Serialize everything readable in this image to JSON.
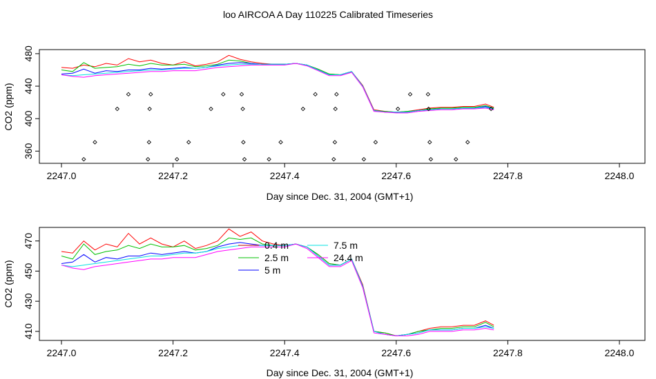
{
  "title": "loo AIRCOA A  Day 110225  Calibrated Timeseries",
  "chart_data": [
    {
      "type": "line",
      "xlabel": "Day since Dec. 31, 2004 (GMT+1)",
      "ylabel": "CO2 (ppm)",
      "xlim": [
        2247.0,
        2248.0
      ],
      "ylim": [
        345,
        485
      ],
      "xticks": [
        "2247.0",
        "2247.2",
        "2247.4",
        "2247.6",
        "2247.8",
        "2248.0"
      ],
      "yticks": [
        "360",
        "400",
        "440",
        "480"
      ],
      "grid": false,
      "series": [
        {
          "color": "#ff0000",
          "x": [
            2247.0,
            2247.02,
            2247.04,
            2247.06,
            2247.08,
            2247.1,
            2247.12,
            2247.14,
            2247.16,
            2247.18,
            2247.2,
            2247.22,
            2247.24,
            2247.26,
            2247.28,
            2247.3,
            2247.32,
            2247.34,
            2247.36,
            2247.38,
            2247.4,
            2247.42,
            2247.44,
            2247.46,
            2247.48,
            2247.5,
            2247.52,
            2247.54,
            2247.56,
            2247.58,
            2247.6,
            2247.62,
            2247.64,
            2247.66,
            2247.68,
            2247.7,
            2247.72,
            2247.74,
            2247.76,
            2247.775
          ],
          "y": [
            463,
            462,
            466,
            464,
            468,
            466,
            474,
            470,
            472,
            468,
            466,
            470,
            465,
            467,
            470,
            478,
            473,
            470,
            468,
            467,
            467,
            468,
            466,
            461,
            455,
            454,
            458,
            441,
            411,
            409,
            408,
            409,
            411,
            413,
            414,
            414,
            415,
            415,
            418,
            414
          ]
        },
        {
          "color": "#00c000",
          "x": [
            2247.0,
            2247.02,
            2247.04,
            2247.06,
            2247.08,
            2247.1,
            2247.12,
            2247.14,
            2247.16,
            2247.18,
            2247.2,
            2247.22,
            2247.24,
            2247.26,
            2247.28,
            2247.3,
            2247.32,
            2247.34,
            2247.36,
            2247.38,
            2247.4,
            2247.42,
            2247.44,
            2247.46,
            2247.48,
            2247.5,
            2247.52,
            2247.54,
            2247.56,
            2247.58,
            2247.6,
            2247.62,
            2247.64,
            2247.66,
            2247.68,
            2247.7,
            2247.72,
            2247.74,
            2247.76,
            2247.775
          ],
          "y": [
            460,
            458,
            469,
            462,
            463,
            464,
            467,
            465,
            468,
            466,
            466,
            467,
            464,
            465,
            467,
            472,
            471,
            468,
            467,
            467,
            467,
            468,
            466,
            461,
            455,
            454,
            458,
            440,
            410,
            409,
            408,
            409,
            410,
            412,
            413,
            413,
            414,
            414,
            416,
            413
          ]
        },
        {
          "color": "#0000ff",
          "x": [
            2247.0,
            2247.02,
            2247.04,
            2247.06,
            2247.08,
            2247.1,
            2247.12,
            2247.14,
            2247.16,
            2247.18,
            2247.2,
            2247.22,
            2247.24,
            2247.26,
            2247.28,
            2247.3,
            2247.32,
            2247.34,
            2247.36,
            2247.38,
            2247.4,
            2247.42,
            2247.44,
            2247.46,
            2247.48,
            2247.5,
            2247.52,
            2247.54,
            2247.56,
            2247.58,
            2247.6,
            2247.62,
            2247.64,
            2247.66,
            2247.68,
            2247.7,
            2247.72,
            2247.74,
            2247.76,
            2247.775
          ],
          "y": [
            455,
            456,
            461,
            456,
            459,
            458,
            460,
            460,
            462,
            461,
            462,
            463,
            462,
            463,
            466,
            468,
            469,
            468,
            467,
            467,
            467,
            468,
            466,
            460,
            454,
            454,
            458,
            440,
            410,
            408,
            408,
            408,
            410,
            411,
            412,
            412,
            413,
            413,
            415,
            412
          ]
        },
        {
          "color": "#00e0e0",
          "x": [
            2247.0,
            2247.02,
            2247.04,
            2247.06,
            2247.08,
            2247.1,
            2247.12,
            2247.14,
            2247.16,
            2247.18,
            2247.2,
            2247.22,
            2247.24,
            2247.26,
            2247.28,
            2247.3,
            2247.32,
            2247.34,
            2247.36,
            2247.38,
            2247.4,
            2247.42,
            2247.44,
            2247.46,
            2247.48,
            2247.5,
            2247.52,
            2247.54,
            2247.56,
            2247.58,
            2247.6,
            2247.62,
            2247.64,
            2247.66,
            2247.68,
            2247.7,
            2247.72,
            2247.74,
            2247.76,
            2247.775
          ],
          "y": [
            454,
            453,
            454,
            455,
            456,
            457,
            458,
            459,
            460,
            460,
            461,
            462,
            462,
            463,
            465,
            466,
            467,
            467,
            467,
            467,
            467,
            468,
            466,
            460,
            454,
            454,
            458,
            440,
            410,
            408,
            408,
            408,
            410,
            411,
            412,
            412,
            413,
            413,
            414,
            412
          ]
        },
        {
          "color": "#ff00ff",
          "x": [
            2247.0,
            2247.02,
            2247.04,
            2247.06,
            2247.08,
            2247.1,
            2247.12,
            2247.14,
            2247.16,
            2247.18,
            2247.2,
            2247.22,
            2247.24,
            2247.26,
            2247.28,
            2247.3,
            2247.32,
            2247.34,
            2247.36,
            2247.38,
            2247.4,
            2247.42,
            2247.44,
            2247.46,
            2247.48,
            2247.5,
            2247.52,
            2247.54,
            2247.56,
            2247.58,
            2247.6,
            2247.62,
            2247.64,
            2247.66,
            2247.68,
            2247.7,
            2247.72,
            2247.74,
            2247.76,
            2247.775
          ],
          "y": [
            454,
            452,
            451,
            453,
            454,
            455,
            456,
            457,
            458,
            458,
            459,
            459,
            459,
            461,
            463,
            464,
            465,
            466,
            466,
            466,
            466,
            468,
            465,
            459,
            453,
            453,
            457,
            439,
            409,
            408,
            407,
            407,
            409,
            410,
            411,
            411,
            412,
            412,
            413,
            411
          ]
        }
      ],
      "points": [
        [
          2247.04,
          350
        ],
        [
          2247.06,
          371
        ],
        [
          2247.1,
          412
        ],
        [
          2247.12,
          430
        ],
        [
          2247.155,
          350
        ],
        [
          2247.157,
          371
        ],
        [
          2247.158,
          412
        ],
        [
          2247.16,
          430
        ],
        [
          2247.207,
          350
        ],
        [
          2247.228,
          371
        ],
        [
          2247.268,
          412
        ],
        [
          2247.29,
          430
        ],
        [
          2247.323,
          430
        ],
        [
          2247.325,
          412
        ],
        [
          2247.326,
          371
        ],
        [
          2247.328,
          350
        ],
        [
          2247.372,
          350
        ],
        [
          2247.393,
          371
        ],
        [
          2247.433,
          412
        ],
        [
          2247.455,
          430
        ],
        [
          2247.488,
          350
        ],
        [
          2247.49,
          371
        ],
        [
          2247.491,
          412
        ],
        [
          2247.493,
          430
        ],
        [
          2247.542,
          350
        ],
        [
          2247.563,
          371
        ],
        [
          2247.603,
          412
        ],
        [
          2247.625,
          430
        ],
        [
          2247.657,
          430
        ],
        [
          2247.658,
          412
        ],
        [
          2247.66,
          371
        ],
        [
          2247.662,
          350
        ],
        [
          2247.707,
          350
        ],
        [
          2247.728,
          371
        ],
        [
          2247.77,
          412
        ]
      ]
    },
    {
      "type": "line",
      "xlabel": "Day since Dec. 31, 2004 (GMT+1)",
      "ylabel": "CO2 (ppm)",
      "xlim": [
        2247.0,
        2248.0
      ],
      "ylim": [
        404,
        479
      ],
      "xticks": [
        "2247.0",
        "2247.2",
        "2247.4",
        "2247.6",
        "2247.8",
        "2248.0"
      ],
      "yticks": [
        "410",
        "430",
        "450",
        "470"
      ],
      "grid": false,
      "legend": "top-center",
      "series": [
        {
          "name": "0.4 m",
          "color": "#ff0000",
          "x": [
            2247.0,
            2247.02,
            2247.04,
            2247.06,
            2247.08,
            2247.1,
            2247.12,
            2247.14,
            2247.16,
            2247.18,
            2247.2,
            2247.22,
            2247.24,
            2247.26,
            2247.28,
            2247.3,
            2247.32,
            2247.34,
            2247.36,
            2247.38,
            2247.4,
            2247.42,
            2247.44,
            2247.46,
            2247.48,
            2247.5,
            2247.52,
            2247.54,
            2247.56,
            2247.58,
            2247.6,
            2247.62,
            2247.64,
            2247.66,
            2247.68,
            2247.7,
            2247.72,
            2247.74,
            2247.76,
            2247.775
          ],
          "y": [
            463,
            462,
            470,
            464,
            468,
            466,
            475,
            468,
            472,
            468,
            466,
            470,
            465,
            467,
            470,
            478,
            473,
            476,
            470,
            468,
            467,
            468,
            466,
            461,
            455,
            454,
            458,
            441,
            410,
            409,
            407,
            408,
            410,
            412,
            413,
            413,
            414,
            414,
            417,
            414
          ]
        },
        {
          "name": "2.5 m",
          "color": "#00c000",
          "x": [
            2247.0,
            2247.02,
            2247.04,
            2247.06,
            2247.08,
            2247.1,
            2247.12,
            2247.14,
            2247.16,
            2247.18,
            2247.2,
            2247.22,
            2247.24,
            2247.26,
            2247.28,
            2247.3,
            2247.32,
            2247.34,
            2247.36,
            2247.38,
            2247.4,
            2247.42,
            2247.44,
            2247.46,
            2247.48,
            2247.5,
            2247.52,
            2247.54,
            2247.56,
            2247.58,
            2247.6,
            2247.62,
            2247.64,
            2247.66,
            2247.68,
            2247.7,
            2247.72,
            2247.74,
            2247.76,
            2247.775
          ],
          "y": [
            460,
            458,
            468,
            461,
            463,
            464,
            467,
            465,
            468,
            466,
            466,
            467,
            464,
            465,
            467,
            472,
            471,
            472,
            468,
            467,
            467,
            468,
            466,
            461,
            455,
            454,
            458,
            440,
            410,
            409,
            407,
            408,
            410,
            411,
            412,
            412,
            413,
            413,
            416,
            413
          ]
        },
        {
          "name": "5 m",
          "color": "#0000ff",
          "x": [
            2247.0,
            2247.02,
            2247.04,
            2247.06,
            2247.08,
            2247.1,
            2247.12,
            2247.14,
            2247.16,
            2247.18,
            2247.2,
            2247.22,
            2247.24,
            2247.26,
            2247.28,
            2247.3,
            2247.32,
            2247.34,
            2247.36,
            2247.38,
            2247.4,
            2247.42,
            2247.44,
            2247.46,
            2247.48,
            2247.5,
            2247.52,
            2247.54,
            2247.56,
            2247.58,
            2247.6,
            2247.62,
            2247.64,
            2247.66,
            2247.68,
            2247.7,
            2247.72,
            2247.74,
            2247.76,
            2247.775
          ],
          "y": [
            455,
            456,
            461,
            456,
            459,
            458,
            460,
            460,
            462,
            461,
            462,
            463,
            462,
            463,
            466,
            468,
            469,
            468,
            467,
            467,
            467,
            468,
            466,
            460,
            454,
            454,
            458,
            440,
            410,
            408,
            407,
            408,
            409,
            411,
            411,
            411,
            412,
            412,
            414,
            412
          ]
        },
        {
          "name": "7.5 m",
          "color": "#00e0e0",
          "x": [
            2247.0,
            2247.02,
            2247.04,
            2247.06,
            2247.08,
            2247.1,
            2247.12,
            2247.14,
            2247.16,
            2247.18,
            2247.2,
            2247.22,
            2247.24,
            2247.26,
            2247.28,
            2247.3,
            2247.32,
            2247.34,
            2247.36,
            2247.38,
            2247.4,
            2247.42,
            2247.44,
            2247.46,
            2247.48,
            2247.5,
            2247.52,
            2247.54,
            2247.56,
            2247.58,
            2247.6,
            2247.62,
            2247.64,
            2247.66,
            2247.68,
            2247.7,
            2247.72,
            2247.74,
            2247.76,
            2247.775
          ],
          "y": [
            454,
            453,
            454,
            455,
            456,
            457,
            458,
            459,
            460,
            460,
            461,
            462,
            462,
            463,
            465,
            466,
            467,
            467,
            467,
            467,
            467,
            468,
            466,
            460,
            454,
            454,
            458,
            440,
            410,
            408,
            407,
            408,
            409,
            411,
            411,
            411,
            412,
            412,
            413,
            412
          ]
        },
        {
          "name": "24.4 m",
          "color": "#ff00ff",
          "x": [
            2247.0,
            2247.02,
            2247.04,
            2247.06,
            2247.08,
            2247.1,
            2247.12,
            2247.14,
            2247.16,
            2247.18,
            2247.2,
            2247.22,
            2247.24,
            2247.26,
            2247.28,
            2247.3,
            2247.32,
            2247.34,
            2247.36,
            2247.38,
            2247.4,
            2247.42,
            2247.44,
            2247.46,
            2247.48,
            2247.5,
            2247.52,
            2247.54,
            2247.56,
            2247.58,
            2247.6,
            2247.62,
            2247.64,
            2247.66,
            2247.68,
            2247.7,
            2247.72,
            2247.74,
            2247.76,
            2247.775
          ],
          "y": [
            454,
            452,
            451,
            453,
            454,
            455,
            456,
            457,
            458,
            458,
            459,
            459,
            459,
            461,
            463,
            464,
            465,
            466,
            466,
            466,
            466,
            468,
            465,
            459,
            453,
            453,
            457,
            439,
            409,
            408,
            407,
            407,
            408,
            410,
            410,
            410,
            411,
            411,
            412,
            411
          ]
        }
      ]
    }
  ]
}
